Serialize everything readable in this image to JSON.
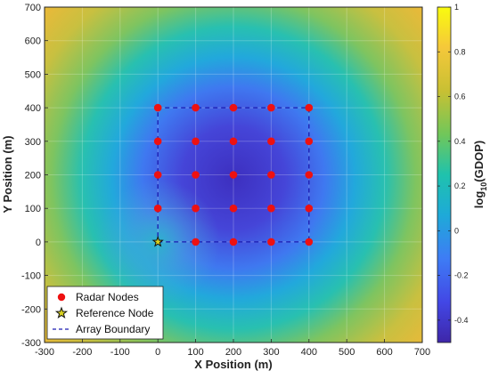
{
  "chart_data": {
    "type": "heatmap",
    "title": "",
    "xlabel": "X Position (m)",
    "ylabel": "Y Position (m)",
    "xlim": [
      -300,
      700
    ],
    "ylim": [
      -300,
      700
    ],
    "x_ticks": [
      -300,
      -200,
      -100,
      0,
      100,
      200,
      300,
      400,
      500,
      600,
      700
    ],
    "y_ticks": [
      -300,
      -200,
      -100,
      0,
      100,
      200,
      300,
      400,
      500,
      600,
      700
    ],
    "grid": true,
    "colorbar": {
      "label_main": "log",
      "label_sub": "10",
      "label_rest": "(GDOP)",
      "range": [
        -0.5,
        1.0
      ],
      "ticks": [
        -0.4,
        -0.2,
        0,
        0.2,
        0.4,
        0.6,
        0.8,
        1
      ],
      "tick_labels": [
        "-0.4",
        "-0.2",
        "0",
        "0.2",
        "0.4",
        "0.6",
        "0.8",
        "1"
      ]
    },
    "series": [
      {
        "name": "Radar Nodes",
        "marker": "circle",
        "color": "#ee1111",
        "points": [
          [
            0,
            0
          ],
          [
            100,
            0
          ],
          [
            200,
            0
          ],
          [
            300,
            0
          ],
          [
            400,
            0
          ],
          [
            0,
            100
          ],
          [
            100,
            100
          ],
          [
            200,
            100
          ],
          [
            300,
            100
          ],
          [
            400,
            100
          ],
          [
            0,
            200
          ],
          [
            100,
            200
          ],
          [
            200,
            200
          ],
          [
            300,
            200
          ],
          [
            400,
            200
          ],
          [
            0,
            300
          ],
          [
            100,
            300
          ],
          [
            200,
            300
          ],
          [
            300,
            300
          ],
          [
            400,
            300
          ],
          [
            0,
            400
          ],
          [
            100,
            400
          ],
          [
            200,
            400
          ],
          [
            300,
            400
          ],
          [
            400,
            400
          ]
        ]
      },
      {
        "name": "Reference Node",
        "marker": "star",
        "color": "#d8d020",
        "points": [
          [
            0,
            0
          ]
        ]
      },
      {
        "name": "Array Boundary",
        "marker": "dashed-line",
        "color": "#1a1ab0",
        "points": [
          [
            0,
            0
          ],
          [
            400,
            0
          ],
          [
            400,
            400
          ],
          [
            0,
            400
          ],
          [
            0,
            0
          ]
        ]
      }
    ],
    "legend": {
      "position": "bottom-left",
      "items": [
        "Radar Nodes",
        "Reference Node",
        "Array Boundary"
      ]
    },
    "colors": {
      "low": "#3b2fc0",
      "mid": "#1fb5c5",
      "high": "#f0c030"
    }
  }
}
